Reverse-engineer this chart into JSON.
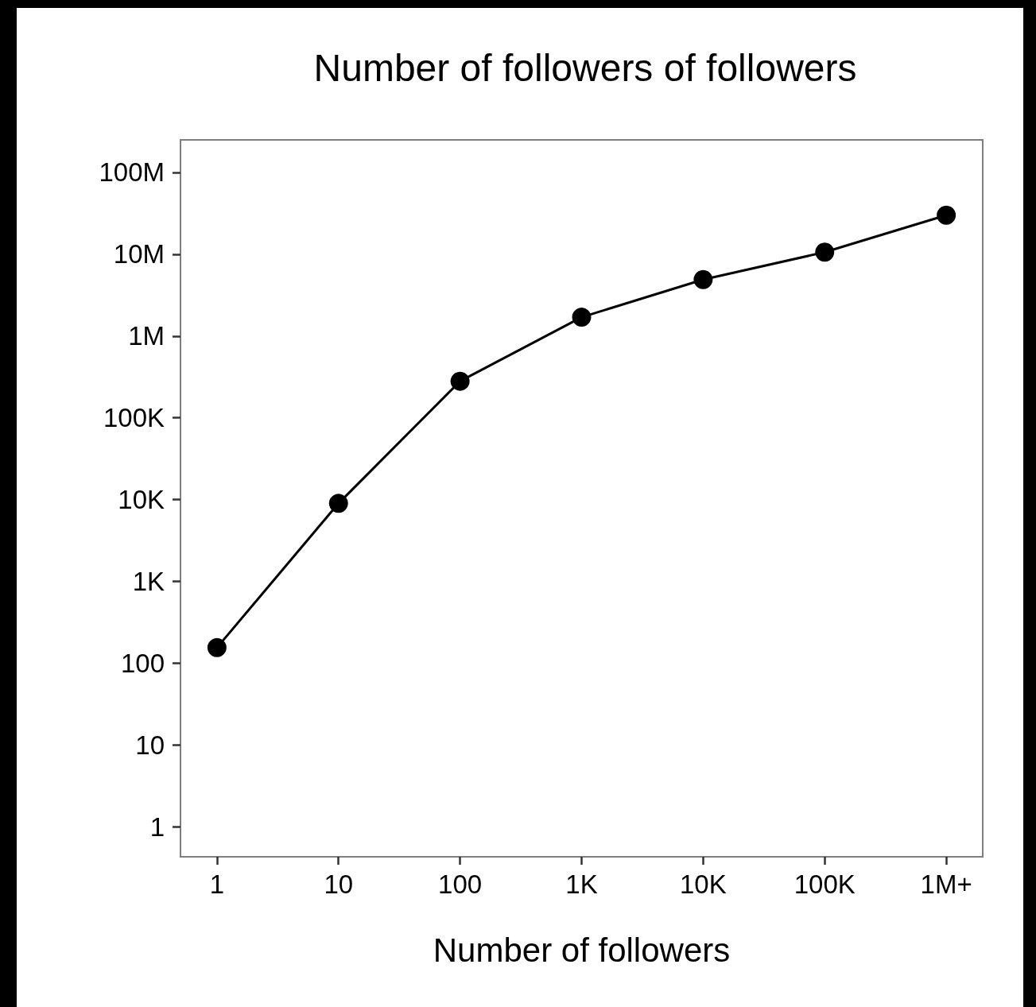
{
  "chart_data": {
    "type": "line",
    "title": "Number of followers of followers",
    "xlabel": "Number of followers",
    "categories": [
      "1",
      "10",
      "100",
      "1K",
      "10K",
      "100K",
      "1M+"
    ],
    "series": [
      {
        "color": "#000000",
        "values": [
          155,
          9000,
          280000,
          1700000,
          4900000,
          10600000,
          30000000
        ]
      }
    ],
    "log": "y",
    "ylim": [
      0.43,
      250000000
    ],
    "yticks": [
      1,
      10,
      100,
      {
        "value": 1000,
        "label": "1K"
      },
      {
        "value": 10000,
        "label": "10K"
      },
      {
        "value": 100000,
        "label": "100K"
      },
      {
        "value": 1000000,
        "label": "1M"
      },
      {
        "value": 10000000,
        "label": "10M"
      },
      {
        "value": 100000000,
        "label": "100M"
      }
    ],
    "marker": "circle",
    "line_style": "solid"
  }
}
